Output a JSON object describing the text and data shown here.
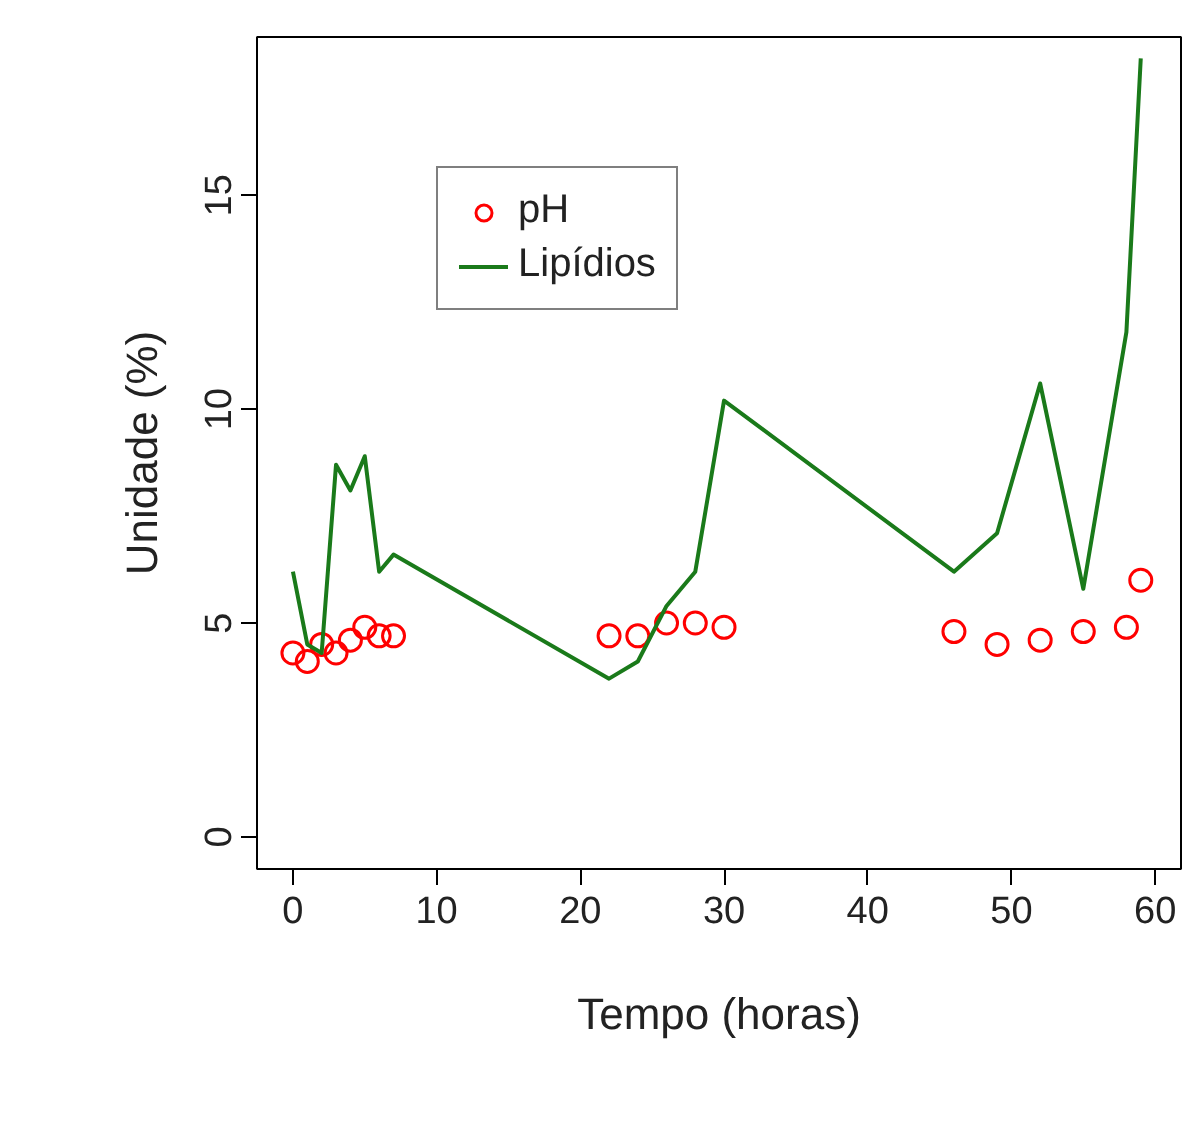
{
  "chart_data": {
    "type": "scatter",
    "xlabel": "Tempo (horas)",
    "ylabel": "Unidade (%)",
    "xlim": [
      -2.5,
      61.8
    ],
    "ylim": [
      -0.75,
      18.7
    ],
    "xticks": [
      0,
      10,
      20,
      30,
      40,
      50,
      60
    ],
    "yticks": [
      0,
      5,
      10,
      15
    ],
    "grid": false,
    "legend": "top left",
    "series": [
      {
        "name": "pH",
        "marker": "circle",
        "color": "#ff0000",
        "x": [
          0,
          1,
          2,
          3,
          4,
          5,
          6,
          7,
          22,
          24,
          26,
          28,
          30,
          46,
          49,
          52,
          55,
          58,
          59
        ],
        "values": [
          4.3,
          4.1,
          4.5,
          4.3,
          4.6,
          4.9,
          4.7,
          4.7,
          4.7,
          4.7,
          5.0,
          5.0,
          4.9,
          4.8,
          4.5,
          4.6,
          4.8,
          4.9,
          6.0
        ]
      },
      {
        "name": "Lipídios",
        "type": "line",
        "color": "#1a7a1a",
        "x": [
          0,
          1,
          2,
          3,
          4,
          5,
          6,
          7,
          22,
          24,
          26,
          28,
          30,
          46,
          49,
          52,
          55,
          58,
          59
        ],
        "values": [
          6.2,
          4.5,
          4.3,
          8.7,
          8.1,
          8.9,
          6.2,
          6.6,
          3.7,
          4.1,
          5.4,
          6.2,
          10.2,
          6.2,
          7.1,
          10.6,
          5.8,
          11.8,
          18.2
        ]
      }
    ]
  }
}
